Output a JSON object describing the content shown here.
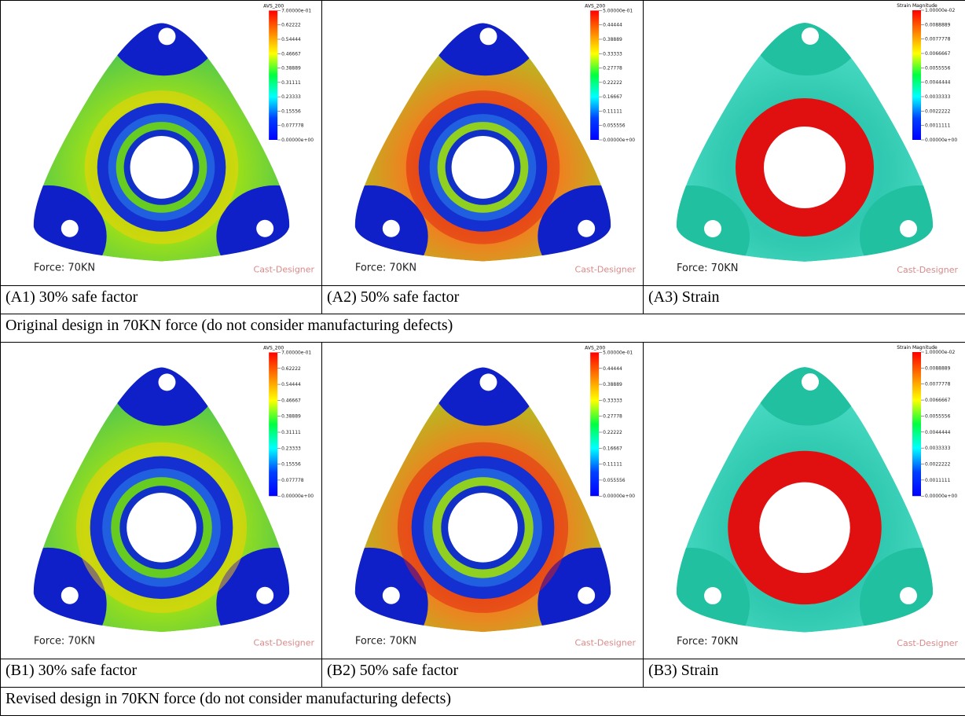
{
  "rows": [
    {
      "panels": [
        {
          "legend_title": "AVS_200",
          "legend_ticks": [
            "7.00000e-01",
            "0.62222",
            "0.54444",
            "0.46667",
            "0.38889",
            "0.31111",
            "0.23333",
            "0.15556",
            "0.077778",
            "0.00000e+00"
          ],
          "force": "Force: 70KN",
          "brand": "Cast-Designer",
          "caption": "(A1) 30% safe factor"
        },
        {
          "legend_title": "AVS_200",
          "legend_ticks": [
            "5.00000e-01",
            "0.44444",
            "0.38889",
            "0.33333",
            "0.27778",
            "0.22222",
            "0.16667",
            "0.11111",
            "0.055556",
            "0.00000e+00"
          ],
          "force": "Force: 70KN",
          "brand": "Cast-Designer",
          "caption": "(A2) 50% safe factor"
        },
        {
          "legend_title": "Strain Magnitude",
          "legend_ticks": [
            "1.00000e-02",
            "0.0088889",
            "0.0077778",
            "0.0066667",
            "0.0055556",
            "0.0044444",
            "0.0033333",
            "0.0022222",
            "0.0011111",
            "0.00000e+00"
          ],
          "force": "Force: 70KN",
          "brand": "Cast-Designer",
          "caption": "(A3) Strain"
        }
      ],
      "note": "Original design in 70KN force (do not consider manufacturing defects)"
    },
    {
      "panels": [
        {
          "legend_title": "AVS_200",
          "legend_ticks": [
            "7.00000e-01",
            "0.62222",
            "0.54444",
            "0.46667",
            "0.38889",
            "0.31111",
            "0.23333",
            "0.15556",
            "0.077778",
            "0.00000e+00"
          ],
          "force": "Force: 70KN",
          "brand": "Cast-Designer",
          "caption": "(B1) 30% safe factor"
        },
        {
          "legend_title": "AVS_200",
          "legend_ticks": [
            "5.00000e-01",
            "0.44444",
            "0.38889",
            "0.33333",
            "0.27778",
            "0.22222",
            "0.16667",
            "0.11111",
            "0.055556",
            "0.00000e+00"
          ],
          "force": "Force: 70KN",
          "brand": "Cast-Designer",
          "caption": "(B2) 50% safe factor"
        },
        {
          "legend_title": "Strain Magnitude",
          "legend_ticks": [
            "1.00000e-02",
            "0.0088889",
            "0.0077778",
            "0.0066667",
            "0.0055556",
            "0.0044444",
            "0.0033333",
            "0.0022222",
            "0.0011111",
            "0.00000e+00"
          ],
          "force": "Force: 70KN",
          "brand": "Cast-Designer",
          "caption": "(B3) Strain"
        }
      ],
      "note": "Revised design in 70KN force (do not consider manufacturing defects)"
    }
  ]
}
